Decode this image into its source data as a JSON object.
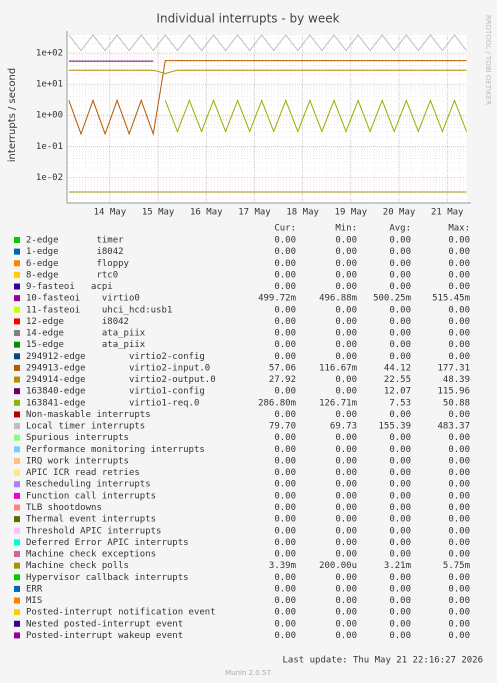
{
  "chart_data": {
    "type": "line",
    "title": "Individual interrupts - by week",
    "ylabel": "interrupts / second",
    "side_text": "RRDTOOL / TOBI OETIKER",
    "log_y": true,
    "grid": true,
    "xlim": [
      13.11,
      21.41
    ],
    "ylim": [
      0.0015,
      380
    ],
    "xticks": [
      {
        "value": 14,
        "label": "14 May"
      },
      {
        "value": 15,
        "label": "15 May"
      },
      {
        "value": 16,
        "label": "16 May"
      },
      {
        "value": 17,
        "label": "17 May"
      },
      {
        "value": 18,
        "label": "18 May"
      },
      {
        "value": 19,
        "label": "19 May"
      },
      {
        "value": 20,
        "label": "20 May"
      },
      {
        "value": 21,
        "label": "21 May"
      }
    ],
    "yticks": [
      {
        "value": 0.01,
        "label": "1e-02"
      },
      {
        "value": 0.1,
        "label": "1e-01"
      },
      {
        "value": 1,
        "label": "1e+00"
      },
      {
        "value": 10,
        "label": "1e+01"
      },
      {
        "value": 100,
        "label": "1e+02"
      }
    ],
    "x": [
      13.15,
      13.4,
      13.65,
      13.9,
      14.15,
      14.4,
      14.65,
      14.9,
      15.15,
      15.4,
      15.65,
      15.9,
      16.15,
      16.4,
      16.65,
      16.9,
      17.15,
      17.4,
      17.65,
      17.9,
      18.15,
      18.4,
      18.65,
      18.9,
      19.15,
      19.4,
      19.65,
      19.9,
      20.15,
      20.4,
      20.65,
      20.9,
      21.15,
      21.4
    ],
    "columns": [
      "Cur:",
      "Min:",
      "Avg:",
      "Max:"
    ],
    "series": [
      {
        "name": "2-edge       timer",
        "color": "#00cc00",
        "stats": [
          "0.00",
          "0.00",
          "0.00",
          "0.00"
        ]
      },
      {
        "name": "1-edge       i8042",
        "color": "#0066b3",
        "stats": [
          "0.00",
          "0.00",
          "0.00",
          "0.00"
        ]
      },
      {
        "name": "6-edge       floppy",
        "color": "#ff8000",
        "stats": [
          "0.00",
          "0.00",
          "0.00",
          "0.00"
        ]
      },
      {
        "name": "8-edge       rtc0",
        "color": "#ffcc00",
        "stats": [
          "0.00",
          "0.00",
          "0.00",
          "0.00"
        ]
      },
      {
        "name": "9-fasteoi   acpi",
        "color": "#330099",
        "stats": [
          "0.00",
          "0.00",
          "0.00",
          "0.00"
        ]
      },
      {
        "name": "10-fasteoi    virtio0",
        "color": "#990099",
        "stats": [
          "499.72m",
          "496.88m",
          "500.25m",
          "515.45m"
        ]
      },
      {
        "name": "11-fasteoi    uhci_hcd:usb1",
        "color": "#ccff00",
        "stats": [
          "0.00",
          "0.00",
          "0.00",
          "0.00"
        ]
      },
      {
        "name": "12-edge       i8042",
        "color": "#ff0000",
        "stats": [
          "0.00",
          "0.00",
          "0.00",
          "0.00"
        ]
      },
      {
        "name": "14-edge       ata_piix",
        "color": "#808080",
        "stats": [
          "0.00",
          "0.00",
          "0.00",
          "0.00"
        ]
      },
      {
        "name": "15-edge       ata_piix",
        "color": "#008f00",
        "stats": [
          "0.00",
          "0.00",
          "0.00",
          "0.00"
        ]
      },
      {
        "name": "294912-edge        virtio2-config",
        "color": "#00487d",
        "stats": [
          "0.00",
          "0.00",
          "0.00",
          "0.00"
        ]
      },
      {
        "name": "294913-edge        virtio2-input.0",
        "color": "#b35a00",
        "stats": [
          "57.06",
          "116.67m",
          "44.12",
          "177.31"
        ],
        "values": [
          3,
          0.25,
          3,
          0.25,
          3,
          0.25,
          3,
          0.25,
          57,
          57,
          57,
          57,
          57,
          57,
          57,
          57,
          57,
          57,
          57,
          57,
          57,
          57,
          57,
          57,
          57,
          57,
          57,
          57,
          57,
          57,
          57,
          57,
          57,
          57
        ]
      },
      {
        "name": "294914-edge        virtio2-output.0",
        "color": "#b38f00",
        "stats": [
          "27.92",
          "0.00",
          "22.55",
          "48.39"
        ],
        "values": [
          28,
          28,
          28,
          28,
          28,
          28,
          28,
          28,
          22,
          28,
          28,
          28,
          28,
          28,
          28,
          28,
          28,
          28,
          28,
          28,
          28,
          28,
          28,
          28,
          28,
          28,
          28,
          28,
          28,
          28,
          28,
          28,
          28,
          28
        ]
      },
      {
        "name": "163840-edge        virtio1-config",
        "color": "#6b006b",
        "stats": [
          "0.00",
          "0.00",
          "12.07",
          "115.96"
        ],
        "values": [
          55,
          55,
          55,
          55,
          55,
          55,
          55,
          55,
          null,
          null,
          null,
          null,
          null,
          null,
          null,
          null,
          null,
          null,
          null,
          null,
          null,
          null,
          null,
          null,
          null,
          null,
          null,
          null,
          null,
          null,
          null,
          null,
          null,
          null
        ]
      },
      {
        "name": "163841-edge        virtio1-req.0",
        "color": "#8fb300",
        "stats": [
          "286.80m",
          "126.71m",
          "7.53",
          "50.88"
        ],
        "values": [
          null,
          null,
          null,
          null,
          null,
          null,
          null,
          null,
          3,
          0.3,
          3,
          0.3,
          3,
          0.3,
          3,
          0.3,
          3,
          0.3,
          3,
          0.3,
          3,
          0.3,
          3,
          0.3,
          3,
          0.3,
          3,
          0.3,
          3,
          0.3,
          3,
          0.3,
          3,
          0.3
        ]
      },
      {
        "name": "Non-maskable interrupts",
        "color": "#b30000",
        "stats": [
          "0.00",
          "0.00",
          "0.00",
          "0.00"
        ]
      },
      {
        "name": "Local timer interrupts",
        "color": "#bebebe",
        "stats": [
          "79.70",
          "69.73",
          "155.39",
          "483.37"
        ],
        "values": [
          380,
          120,
          380,
          120,
          380,
          120,
          380,
          120,
          380,
          120,
          380,
          120,
          380,
          120,
          380,
          120,
          380,
          120,
          380,
          120,
          380,
          120,
          380,
          120,
          380,
          120,
          380,
          120,
          380,
          120,
          380,
          120,
          380,
          120
        ]
      },
      {
        "name": "Spurious interrupts",
        "color": "#80ff80",
        "stats": [
          "0.00",
          "0.00",
          "0.00",
          "0.00"
        ]
      },
      {
        "name": "Performance monitoring interrupts",
        "color": "#80c9ff",
        "stats": [
          "0.00",
          "0.00",
          "0.00",
          "0.00"
        ]
      },
      {
        "name": "IRQ work interrupts",
        "color": "#ffc080",
        "stats": [
          "0.00",
          "0.00",
          "0.00",
          "0.00"
        ]
      },
      {
        "name": "APIC ICR read retries",
        "color": "#ffe680",
        "stats": [
          "0.00",
          "0.00",
          "0.00",
          "0.00"
        ]
      },
      {
        "name": "Rescheduling interrupts",
        "color": "#aa80ff",
        "stats": [
          "0.00",
          "0.00",
          "0.00",
          "0.00"
        ]
      },
      {
        "name": "Function call interrupts",
        "color": "#ee00cc",
        "stats": [
          "0.00",
          "0.00",
          "0.00",
          "0.00"
        ]
      },
      {
        "name": "TLB shootdowns",
        "color": "#ff8080",
        "stats": [
          "0.00",
          "0.00",
          "0.00",
          "0.00"
        ]
      },
      {
        "name": "Thermal event interrupts",
        "color": "#666600",
        "stats": [
          "0.00",
          "0.00",
          "0.00",
          "0.00"
        ]
      },
      {
        "name": "Threshold APIC interrupts",
        "color": "#ffbfff",
        "stats": [
          "0.00",
          "0.00",
          "0.00",
          "0.00"
        ]
      },
      {
        "name": "Deferred Error APIC interrupts",
        "color": "#00ffcc",
        "stats": [
          "0.00",
          "0.00",
          "0.00",
          "0.00"
        ]
      },
      {
        "name": "Machine check exceptions",
        "color": "#cc6699",
        "stats": [
          "0.00",
          "0.00",
          "0.00",
          "0.00"
        ]
      },
      {
        "name": "Machine check polls",
        "color": "#999900",
        "stats": [
          "3.39m",
          "200.00u",
          "3.21m",
          "5.75m"
        ],
        "values": [
          0.0034,
          0.0034,
          0.0034,
          0.0034,
          0.0034,
          0.0034,
          0.0034,
          0.0034,
          0.0034,
          0.0034,
          0.0034,
          0.0034,
          0.0034,
          0.0034,
          0.0034,
          0.0034,
          0.0034,
          0.0034,
          0.0034,
          0.0034,
          0.0034,
          0.0034,
          0.0034,
          0.0034,
          0.0034,
          0.0034,
          0.0034,
          0.0034,
          0.0034,
          0.0034,
          0.0034,
          0.0034,
          0.0034,
          0.0034
        ]
      },
      {
        "name": "Hypervisor callback interrupts",
        "color": "#00cc00",
        "stats": [
          "0.00",
          "0.00",
          "0.00",
          "0.00"
        ]
      },
      {
        "name": "ERR",
        "color": "#0066b3",
        "stats": [
          "0.00",
          "0.00",
          "0.00",
          "0.00"
        ]
      },
      {
        "name": "MIS",
        "color": "#ff8000",
        "stats": [
          "0.00",
          "0.00",
          "0.00",
          "0.00"
        ]
      },
      {
        "name": "Posted-interrupt notification event",
        "color": "#ffcc00",
        "stats": [
          "0.00",
          "0.00",
          "0.00",
          "0.00"
        ]
      },
      {
        "name": "Nested posted-interrupt event",
        "color": "#330099",
        "stats": [
          "0.00",
          "0.00",
          "0.00",
          "0.00"
        ]
      },
      {
        "name": "Posted-interrupt wakeup event",
        "color": "#990099",
        "stats": [
          "0.00",
          "0.00",
          "0.00",
          "0.00"
        ]
      }
    ],
    "last_update": "Last update: Thu May 21 22:16:27 2026",
    "footer": "Munin 2.0.57"
  }
}
